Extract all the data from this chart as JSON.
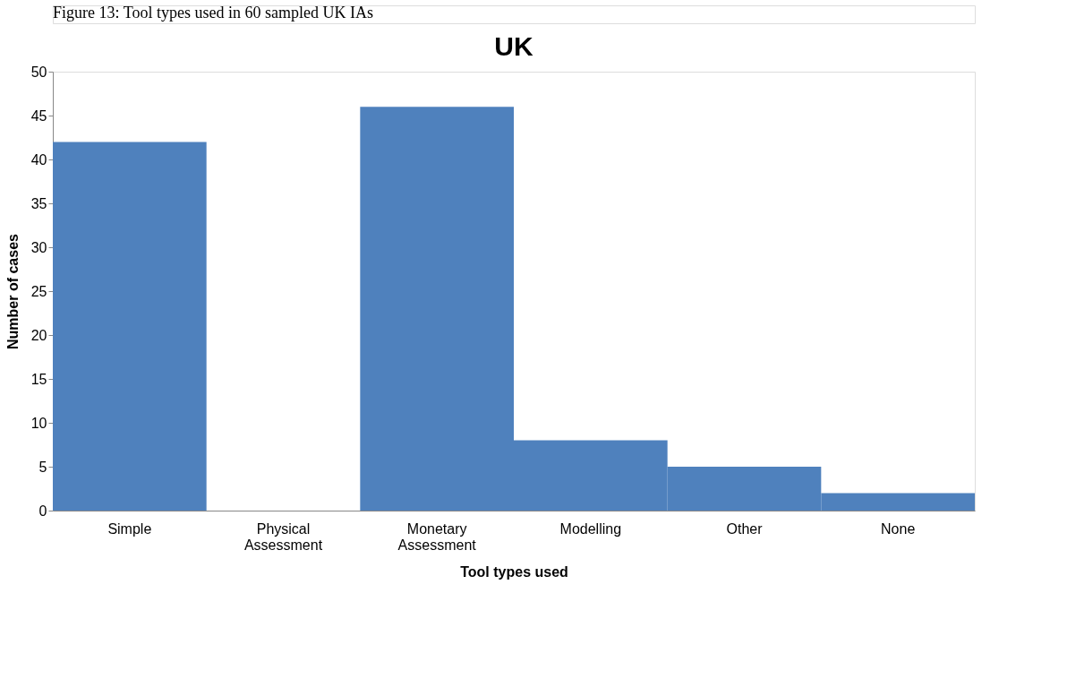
{
  "chart_data": {
    "type": "bar",
    "title": "UK",
    "xlabel": "Tool types used",
    "ylabel": "Number of cases",
    "annotations": [
      "Figure 13: Tool types used in 60 sampled UK IAs"
    ],
    "categories": [
      "Simple",
      "Physical Assessment",
      "Monetary Assessment",
      "Modelling",
      "Other",
      "None"
    ],
    "values": [
      42,
      0,
      46,
      8,
      5,
      2
    ],
    "color": "#4f81bd",
    "ylim": [
      0,
      50
    ],
    "yticks": [
      0,
      5,
      10,
      15,
      20,
      25,
      30,
      35,
      40,
      45,
      50
    ],
    "grid": false,
    "legend": false
  }
}
